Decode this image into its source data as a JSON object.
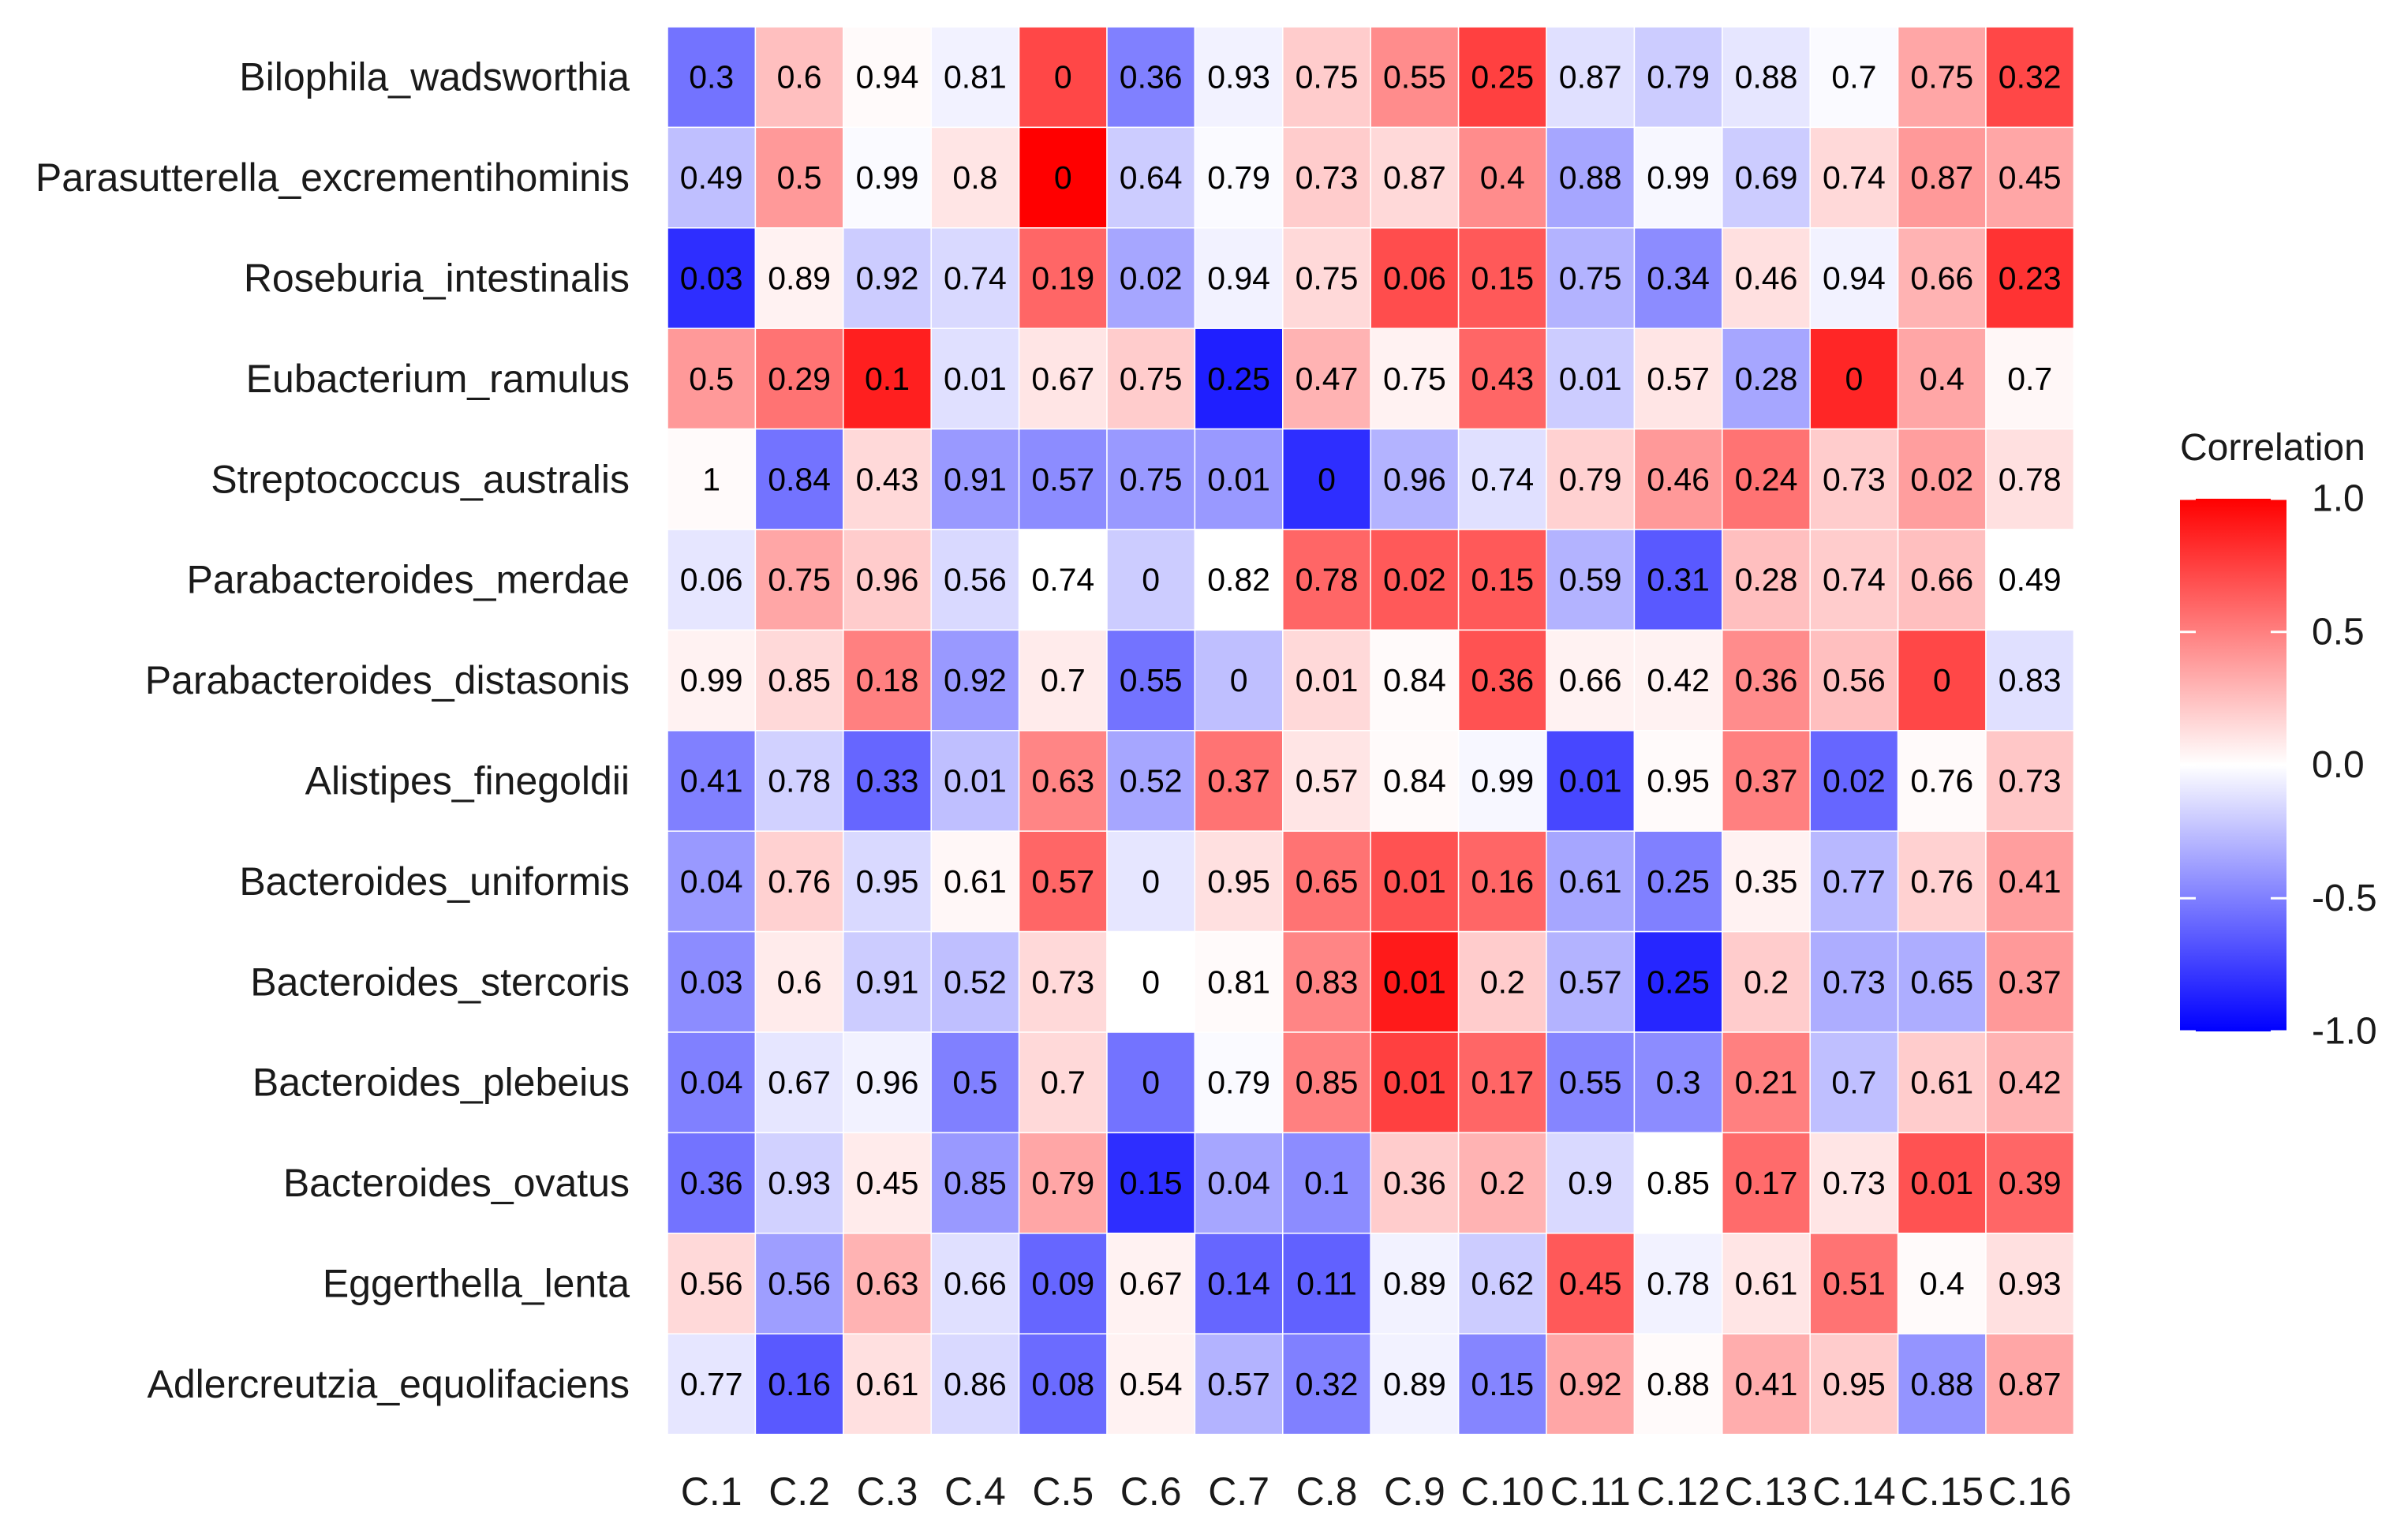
{
  "chart_data": {
    "type": "heatmap",
    "title": "",
    "xlabel": "",
    "ylabel": "",
    "columns": [
      "C.1",
      "C.2",
      "C.3",
      "C.4",
      "C.5",
      "C.6",
      "C.7",
      "C.8",
      "C.9",
      "C.10",
      "C.11",
      "C.12",
      "C.13",
      "C.14",
      "C.15",
      "C.16"
    ],
    "rows": [
      "Bilophila_wadsworthia",
      "Parasutterella_excrementihominis",
      "Roseburia_intestinalis",
      "Eubacterium_ramulus",
      "Streptococcus_australis",
      "Parabacteroides_merdae",
      "Parabacteroides_distasonis",
      "Alistipes_finegoldii",
      "Bacteroides_uniformis",
      "Bacteroides_stercoris",
      "Bacteroides_plebeius",
      "Bacteroides_ovatus",
      "Eggerthella_lenta",
      "Adlercreutzia_equolifaciens"
    ],
    "cell_labels": [
      [
        "0.3",
        "0.6",
        "0.94",
        "0.81",
        "0",
        "0.36",
        "0.93",
        "0.75",
        "0.55",
        "0.25",
        "0.87",
        "0.79",
        "0.88",
        "0.7",
        "0.75",
        "0.32"
      ],
      [
        "0.49",
        "0.5",
        "0.99",
        "0.8",
        "0",
        "0.64",
        "0.79",
        "0.73",
        "0.87",
        "0.4",
        "0.88",
        "0.99",
        "0.69",
        "0.74",
        "0.87",
        "0.45"
      ],
      [
        "0.03",
        "0.89",
        "0.92",
        "0.74",
        "0.19",
        "0.02",
        "0.94",
        "0.75",
        "0.06",
        "0.15",
        "0.75",
        "0.34",
        "0.46",
        "0.94",
        "0.66",
        "0.23"
      ],
      [
        "0.5",
        "0.29",
        "0.1",
        "0.01",
        "0.67",
        "0.75",
        "0.25",
        "0.47",
        "0.75",
        "0.43",
        "0.01",
        "0.57",
        "0.28",
        "0",
        "0.4",
        "0.7"
      ],
      [
        "1",
        "0.84",
        "0.43",
        "0.91",
        "0.57",
        "0.75",
        "0.01",
        "0",
        "0.96",
        "0.74",
        "0.79",
        "0.46",
        "0.24",
        "0.73",
        "0.02",
        "0.78"
      ],
      [
        "0.06",
        "0.75",
        "0.96",
        "0.56",
        "0.74",
        "0",
        "0.82",
        "0.78",
        "0.02",
        "0.15",
        "0.59",
        "0.31",
        "0.28",
        "0.74",
        "0.66",
        "0.49"
      ],
      [
        "0.99",
        "0.85",
        "0.18",
        "0.92",
        "0.7",
        "0.55",
        "0",
        "0.01",
        "0.84",
        "0.36",
        "0.66",
        "0.42",
        "0.36",
        "0.56",
        "0",
        "0.83"
      ],
      [
        "0.41",
        "0.78",
        "0.33",
        "0.01",
        "0.63",
        "0.52",
        "0.37",
        "0.57",
        "0.84",
        "0.99",
        "0.01",
        "0.95",
        "0.37",
        "0.02",
        "0.76",
        "0.73"
      ],
      [
        "0.04",
        "0.76",
        "0.95",
        "0.61",
        "0.57",
        "0",
        "0.95",
        "0.65",
        "0.01",
        "0.16",
        "0.61",
        "0.25",
        "0.35",
        "0.77",
        "0.76",
        "0.41"
      ],
      [
        "0.03",
        "0.6",
        "0.91",
        "0.52",
        "0.73",
        "0",
        "0.81",
        "0.83",
        "0.01",
        "0.2",
        "0.57",
        "0.25",
        "0.2",
        "0.73",
        "0.65",
        "0.37"
      ],
      [
        "0.04",
        "0.67",
        "0.96",
        "0.5",
        "0.7",
        "0",
        "0.79",
        "0.85",
        "0.01",
        "0.17",
        "0.55",
        "0.3",
        "0.21",
        "0.7",
        "0.61",
        "0.42"
      ],
      [
        "0.36",
        "0.93",
        "0.45",
        "0.85",
        "0.79",
        "0.15",
        "0.04",
        "0.1",
        "0.36",
        "0.2",
        "0.9",
        "0.85",
        "0.17",
        "0.73",
        "0.01",
        "0.39"
      ],
      [
        "0.56",
        "0.56",
        "0.63",
        "0.66",
        "0.09",
        "0.67",
        "0.14",
        "0.11",
        "0.89",
        "0.62",
        "0.45",
        "0.78",
        "0.61",
        "0.51",
        "0.4",
        "0.93"
      ],
      [
        "0.77",
        "0.16",
        "0.61",
        "0.86",
        "0.08",
        "0.54",
        "0.57",
        "0.32",
        "0.89",
        "0.15",
        "0.92",
        "0.88",
        "0.41",
        "0.95",
        "0.88",
        "0.87"
      ]
    ],
    "correlation": [
      [
        -0.55,
        0.25,
        0.02,
        -0.05,
        0.72,
        -0.5,
        -0.05,
        0.2,
        0.45,
        0.75,
        -0.12,
        -0.2,
        -0.1,
        -0.02,
        0.35,
        0.72
      ],
      [
        -0.25,
        0.4,
        -0.02,
        0.1,
        1.0,
        -0.2,
        -0.02,
        0.2,
        0.15,
        0.45,
        -0.35,
        -0.03,
        -0.2,
        0.15,
        0.4,
        0.35
      ],
      [
        -0.82,
        0.05,
        -0.2,
        -0.15,
        0.6,
        -0.35,
        -0.05,
        0.15,
        0.7,
        0.65,
        -0.3,
        -0.45,
        0.12,
        -0.05,
        0.3,
        0.8
      ],
      [
        0.4,
        0.55,
        0.88,
        -0.12,
        0.1,
        0.2,
        -0.88,
        0.3,
        0.05,
        0.6,
        -0.2,
        0.1,
        -0.35,
        0.85,
        0.35,
        0.03
      ],
      [
        0.02,
        -0.55,
        0.15,
        -0.4,
        -0.45,
        -0.4,
        -0.4,
        -0.82,
        -0.3,
        -0.12,
        0.18,
        0.4,
        0.55,
        0.2,
        0.38,
        0.12
      ],
      [
        -0.1,
        0.35,
        0.2,
        -0.15,
        0.0,
        -0.2,
        0.0,
        0.6,
        0.65,
        0.65,
        -0.3,
        -0.65,
        0.25,
        0.2,
        0.25,
        0.0
      ],
      [
        0.05,
        0.15,
        0.5,
        -0.4,
        0.08,
        -0.55,
        -0.25,
        0.15,
        0.02,
        0.68,
        0.05,
        0.05,
        0.45,
        0.25,
        0.72,
        -0.12
      ],
      [
        -0.5,
        -0.18,
        -0.6,
        -0.25,
        0.48,
        -0.35,
        0.55,
        0.1,
        0.02,
        -0.03,
        -0.72,
        0.02,
        0.5,
        -0.6,
        0.02,
        0.22
      ],
      [
        -0.4,
        0.18,
        -0.15,
        0.03,
        0.6,
        -0.1,
        0.12,
        0.55,
        0.68,
        0.6,
        -0.35,
        -0.5,
        0.05,
        -0.28,
        0.18,
        0.38
      ],
      [
        -0.45,
        0.08,
        -0.2,
        -0.25,
        0.15,
        0.0,
        0.02,
        0.48,
        0.9,
        0.2,
        -0.3,
        -0.85,
        0.2,
        -0.32,
        -0.32,
        0.4
      ],
      [
        -0.5,
        -0.1,
        -0.05,
        -0.5,
        0.15,
        -0.55,
        -0.02,
        0.5,
        0.75,
        0.6,
        -0.48,
        -0.45,
        0.5,
        -0.25,
        0.2,
        0.3
      ],
      [
        -0.55,
        -0.18,
        0.08,
        -0.4,
        0.35,
        -0.82,
        -0.35,
        -0.45,
        0.2,
        0.3,
        -0.15,
        0.0,
        0.58,
        0.1,
        0.68,
        0.6
      ],
      [
        0.15,
        -0.38,
        0.3,
        -0.12,
        -0.6,
        0.05,
        -0.6,
        -0.62,
        -0.05,
        -0.2,
        0.65,
        -0.05,
        0.1,
        0.55,
        0.02,
        0.12
      ],
      [
        -0.1,
        -0.65,
        0.12,
        -0.15,
        -0.58,
        0.05,
        -0.3,
        -0.5,
        -0.05,
        -0.48,
        0.35,
        0.02,
        0.32,
        0.2,
        -0.42,
        0.35
      ]
    ],
    "color_scale": {
      "low": "#0000ff",
      "mid": "#ffffff",
      "high": "#ff0000",
      "range": [
        -1.0,
        1.0
      ]
    },
    "legend": {
      "title": "Correlation",
      "ticks": [
        "1.0",
        "0.5",
        "0.0",
        "-0.5",
        "-1.0"
      ],
      "tick_values": [
        1.0,
        0.5,
        0.0,
        -0.5,
        -1.0
      ],
      "position": "right"
    },
    "grid": false
  }
}
